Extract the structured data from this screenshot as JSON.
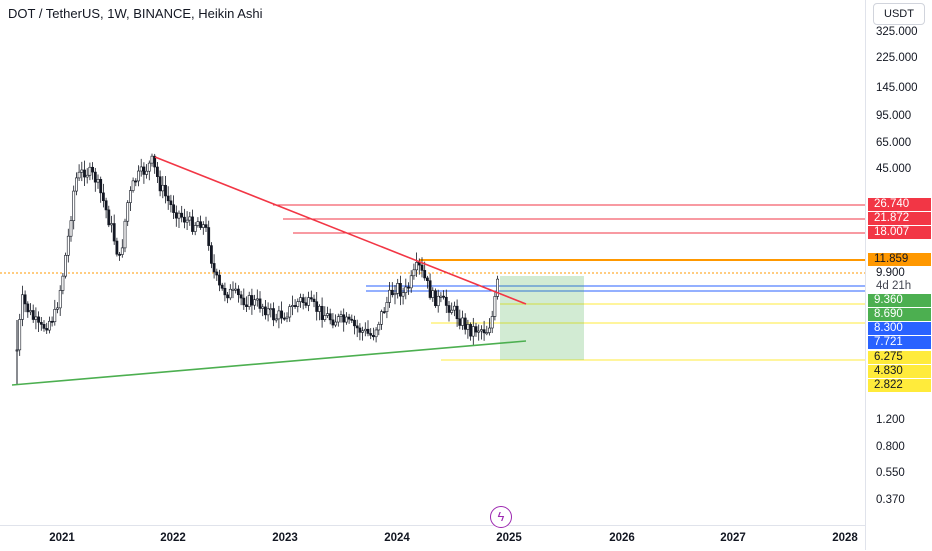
{
  "header": {
    "title": "DOT / TetherUS, 1W, BINANCE, Heikin Ashi"
  },
  "price_axis": {
    "currency": "USDT",
    "labels": [
      "325.000",
      "225.000",
      "145.000",
      "95.000",
      "65.000",
      "45.000",
      "1.200",
      "0.800",
      "0.550",
      "0.370"
    ],
    "current_price": "9.900",
    "countdown": "4d 21h",
    "tags": [
      {
        "value": "26.740",
        "color": "#f23645",
        "text_color": "#ffffff"
      },
      {
        "value": "21.872",
        "color": "#f23645",
        "text_color": "#ffffff"
      },
      {
        "value": "18.007",
        "color": "#f23645",
        "text_color": "#ffffff"
      },
      {
        "value": "11.859",
        "color": "#ff9800",
        "text_color": "#131722"
      },
      {
        "value": "9.360",
        "color": "#4caf50",
        "text_color": "#ffffff"
      },
      {
        "value": "8.690",
        "color": "#4caf50",
        "text_color": "#ffffff"
      },
      {
        "value": "8.300",
        "color": "#2962ff",
        "text_color": "#ffffff"
      },
      {
        "value": "7.721",
        "color": "#2962ff",
        "text_color": "#ffffff"
      },
      {
        "value": "6.275",
        "color": "#ffeb3b",
        "text_color": "#131722"
      },
      {
        "value": "4.830",
        "color": "#ffeb3b",
        "text_color": "#131722"
      },
      {
        "value": "2.822",
        "color": "#ffeb3b",
        "text_color": "#131722"
      }
    ]
  },
  "time_axis": {
    "labels": [
      "2021",
      "2022",
      "2023",
      "2024",
      "2025",
      "2026",
      "2027",
      "2028"
    ]
  },
  "colors": {
    "up": "#089981",
    "down": "#f23645",
    "wick": "#131722",
    "resistance": "#f23645",
    "support": "#4caf50"
  },
  "icons": {
    "bolt": "lightning-bolt-icon"
  }
}
